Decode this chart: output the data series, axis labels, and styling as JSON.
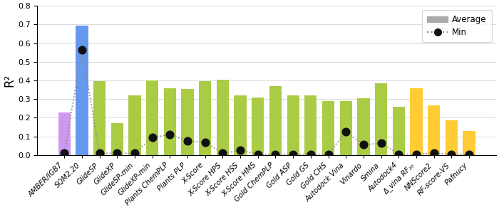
{
  "categories": [
    "AMBER/IGB7",
    "SQM2.20",
    "GlideSP",
    "GlideXP",
    "GlideSP-min",
    "GlideXP-min",
    "Plants ChemPLP",
    "Plants PLP",
    "X-Score",
    "X-Score HPS",
    "X-Score HSS",
    "X-Score HMS",
    "Gold ChemPLP",
    "Gold ASP",
    "Gold GS",
    "Gold CHS",
    "Autodock Vina",
    "Vinardo",
    "Smina",
    "Autodock4",
    "Δ_vina RF₂₀",
    "NNScore2",
    "RF-score-VS",
    "Pafnucy"
  ],
  "avg_values": [
    0.23,
    0.695,
    0.395,
    0.17,
    0.32,
    0.4,
    0.36,
    0.355,
    0.395,
    0.405,
    0.32,
    0.31,
    0.37,
    0.32,
    0.32,
    0.29,
    0.29,
    0.305,
    0.385,
    0.26,
    0.36,
    0.265,
    0.185,
    0.13
  ],
  "min_values": [
    0.01,
    0.565,
    0.01,
    0.01,
    0.01,
    0.095,
    0.11,
    0.075,
    0.07,
    0.01,
    0.025,
    0.005,
    0.005,
    0.005,
    0.005,
    0.005,
    0.125,
    0.055,
    0.065,
    0.005,
    0.005,
    0.01,
    0.005,
    0.005
  ],
  "bar_colors": [
    "#cc99ee",
    "#6699ee",
    "#aacc44",
    "#aacc44",
    "#aacc44",
    "#aacc44",
    "#aacc44",
    "#aacc44",
    "#aacc44",
    "#aacc44",
    "#aacc44",
    "#aacc44",
    "#aacc44",
    "#aacc44",
    "#aacc44",
    "#aacc44",
    "#aacc44",
    "#aacc44",
    "#aacc44",
    "#aacc44",
    "#ffcc33",
    "#ffcc33",
    "#ffcc33",
    "#ffcc33"
  ],
  "ylabel": "R²",
  "ylim": [
    0,
    0.8
  ],
  "yticks": [
    0.0,
    0.1,
    0.2,
    0.3,
    0.4,
    0.5,
    0.6,
    0.7,
    0.8
  ],
  "legend_avg_color": "#aaaaaa",
  "line_color": "#888888",
  "dot_color": "#111111",
  "fig_width": 7.0,
  "fig_height": 2.95,
  "dpi": 100
}
